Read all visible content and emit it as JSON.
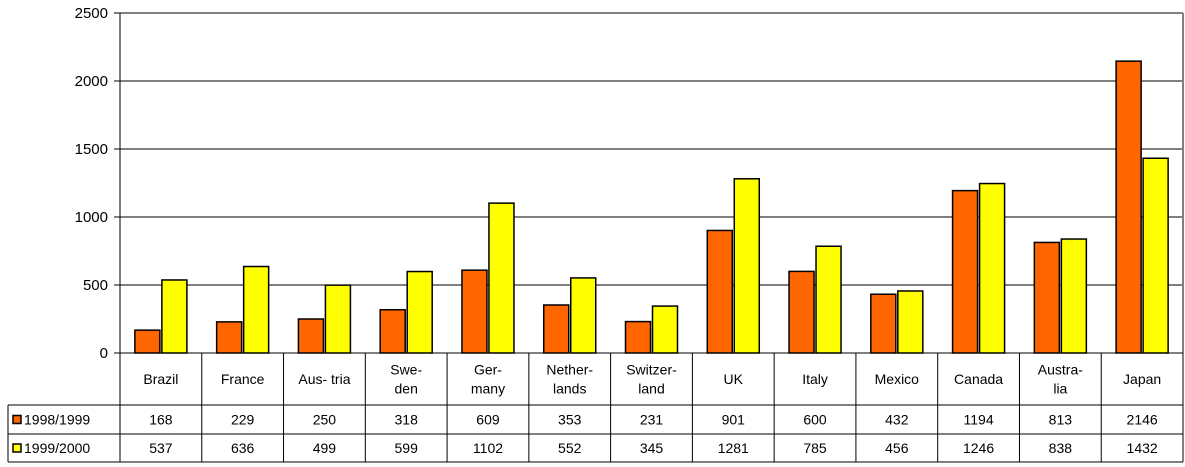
{
  "chart_data": {
    "type": "bar",
    "categories": [
      [
        "Brazil"
      ],
      [
        "France"
      ],
      [
        "Aus- tria"
      ],
      [
        "Swe-",
        "den"
      ],
      [
        "Ger-",
        "many"
      ],
      [
        "Nether-",
        "lands"
      ],
      [
        "Switzer-",
        "land"
      ],
      [
        "UK"
      ],
      [
        "Italy"
      ],
      [
        "Mexico"
      ],
      [
        "Canada"
      ],
      [
        "Austra-",
        "lia"
      ],
      [
        "Japan"
      ]
    ],
    "series": [
      {
        "name": "1998/1999",
        "color": "#ff6600",
        "values": [
          168,
          229,
          250,
          318,
          609,
          353,
          231,
          901,
          600,
          432,
          1194,
          813,
          2146
        ]
      },
      {
        "name": "1999/2000",
        "color": "#ffff00",
        "values": [
          537,
          636,
          499,
          599,
          1102,
          552,
          345,
          1281,
          785,
          456,
          1246,
          838,
          1432
        ]
      }
    ],
    "ylim": [
      0,
      2500
    ],
    "yticks": [
      0,
      500,
      1000,
      1500,
      2000,
      2500
    ],
    "grid": true,
    "legend": "data-table"
  }
}
